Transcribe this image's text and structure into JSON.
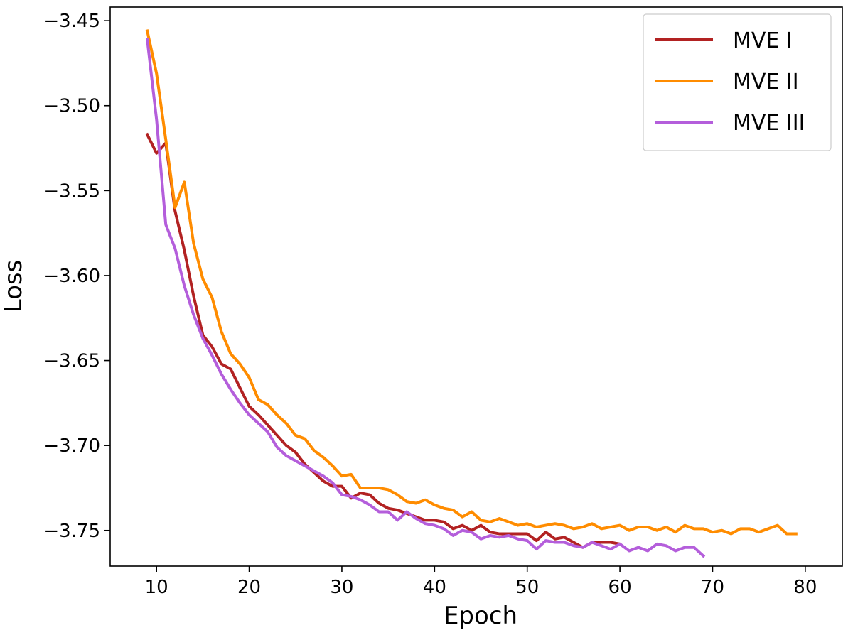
{
  "chart_data": {
    "type": "line",
    "xlabel": "Epoch",
    "ylabel": "Loss",
    "xlim": [
      5,
      84
    ],
    "ylim": [
      -3.771,
      -3.442
    ],
    "xticks": [
      10,
      20,
      30,
      40,
      50,
      60,
      70,
      80
    ],
    "yticks": [
      -3.45,
      -3.5,
      -3.55,
      -3.6,
      -3.65,
      -3.7,
      -3.75
    ],
    "xtick_labels": [
      "10",
      "20",
      "30",
      "40",
      "50",
      "60",
      "70",
      "80"
    ],
    "ytick_labels": [
      "−3.45",
      "−3.50",
      "−3.55",
      "−3.60",
      "−3.65",
      "−3.70",
      "−3.75"
    ],
    "grid": false,
    "legend": "top-right",
    "series": [
      {
        "name": "MVE I",
        "color": "#b22222",
        "x": [
          9,
          10,
          11,
          12,
          13,
          14,
          15,
          16,
          17,
          18,
          19,
          20,
          21,
          22,
          23,
          24,
          25,
          26,
          27,
          28,
          29,
          30,
          31,
          32,
          33,
          34,
          35,
          36,
          37,
          38,
          39,
          40,
          41,
          42,
          43,
          44,
          45,
          46,
          47,
          48,
          49,
          50,
          51,
          52,
          53,
          54,
          55,
          56,
          57,
          58,
          59,
          60
        ],
        "y": [
          -3.517,
          -3.528,
          -3.522,
          -3.562,
          -3.585,
          -3.612,
          -3.635,
          -3.642,
          -3.652,
          -3.655,
          -3.666,
          -3.677,
          -3.682,
          -3.688,
          -3.694,
          -3.7,
          -3.704,
          -3.711,
          -3.716,
          -3.721,
          -3.724,
          -3.724,
          -3.731,
          -3.728,
          -3.729,
          -3.734,
          -3.737,
          -3.738,
          -3.74,
          -3.742,
          -3.744,
          -3.744,
          -3.745,
          -3.749,
          -3.747,
          -3.75,
          -3.747,
          -3.751,
          -3.752,
          -3.752,
          -3.752,
          -3.752,
          -3.756,
          -3.751,
          -3.755,
          -3.754,
          -3.757,
          -3.76,
          -3.757,
          -3.757,
          -3.757,
          -3.758
        ]
      },
      {
        "name": "MVE II",
        "color": "#ff8c00",
        "x": [
          9,
          10,
          11,
          12,
          13,
          14,
          15,
          16,
          17,
          18,
          19,
          20,
          21,
          22,
          23,
          24,
          25,
          26,
          27,
          28,
          29,
          30,
          31,
          32,
          33,
          34,
          35,
          36,
          37,
          38,
          39,
          40,
          41,
          42,
          43,
          44,
          45,
          46,
          47,
          48,
          49,
          50,
          51,
          52,
          53,
          54,
          55,
          56,
          57,
          58,
          59,
          60,
          61,
          62,
          63,
          64,
          65,
          66,
          67,
          68,
          69,
          70,
          71,
          72,
          73,
          74,
          75,
          76,
          77,
          78,
          79
        ],
        "y": [
          -3.456,
          -3.481,
          -3.52,
          -3.56,
          -3.545,
          -3.581,
          -3.602,
          -3.613,
          -3.633,
          -3.646,
          -3.652,
          -3.66,
          -3.673,
          -3.676,
          -3.682,
          -3.687,
          -3.694,
          -3.696,
          -3.703,
          -3.707,
          -3.712,
          -3.718,
          -3.717,
          -3.725,
          -3.725,
          -3.725,
          -3.726,
          -3.729,
          -3.733,
          -3.734,
          -3.732,
          -3.735,
          -3.737,
          -3.738,
          -3.742,
          -3.739,
          -3.744,
          -3.745,
          -3.743,
          -3.745,
          -3.747,
          -3.746,
          -3.748,
          -3.747,
          -3.746,
          -3.747,
          -3.749,
          -3.748,
          -3.746,
          -3.749,
          -3.748,
          -3.747,
          -3.75,
          -3.748,
          -3.748,
          -3.75,
          -3.748,
          -3.751,
          -3.747,
          -3.749,
          -3.749,
          -3.751,
          -3.75,
          -3.752,
          -3.749,
          -3.749,
          -3.751,
          -3.749,
          -3.747,
          -3.752,
          -3.752
        ]
      },
      {
        "name": "MVE III",
        "color": "#b45edb",
        "x": [
          9,
          10,
          11,
          12,
          13,
          14,
          15,
          16,
          17,
          18,
          19,
          20,
          21,
          22,
          23,
          24,
          25,
          26,
          27,
          28,
          29,
          30,
          31,
          32,
          33,
          34,
          35,
          36,
          37,
          38,
          39,
          40,
          41,
          42,
          43,
          44,
          45,
          46,
          47,
          48,
          49,
          50,
          51,
          52,
          53,
          54,
          55,
          56,
          57,
          58,
          59,
          60,
          61,
          62,
          63,
          64,
          65,
          66,
          67,
          68,
          69
        ],
        "y": [
          -3.461,
          -3.508,
          -3.57,
          -3.584,
          -3.606,
          -3.623,
          -3.637,
          -3.647,
          -3.658,
          -3.667,
          -3.675,
          -3.682,
          -3.687,
          -3.692,
          -3.701,
          -3.706,
          -3.709,
          -3.712,
          -3.715,
          -3.718,
          -3.722,
          -3.729,
          -3.73,
          -3.732,
          -3.735,
          -3.739,
          -3.739,
          -3.744,
          -3.739,
          -3.743,
          -3.746,
          -3.747,
          -3.749,
          -3.753,
          -3.75,
          -3.751,
          -3.755,
          -3.753,
          -3.754,
          -3.753,
          -3.755,
          -3.756,
          -3.761,
          -3.756,
          -3.757,
          -3.757,
          -3.759,
          -3.76,
          -3.757,
          -3.759,
          -3.761,
          -3.758,
          -3.762,
          -3.76,
          -3.762,
          -3.758,
          -3.759,
          -3.762,
          -3.76,
          -3.76,
          -3.765
        ]
      }
    ]
  }
}
